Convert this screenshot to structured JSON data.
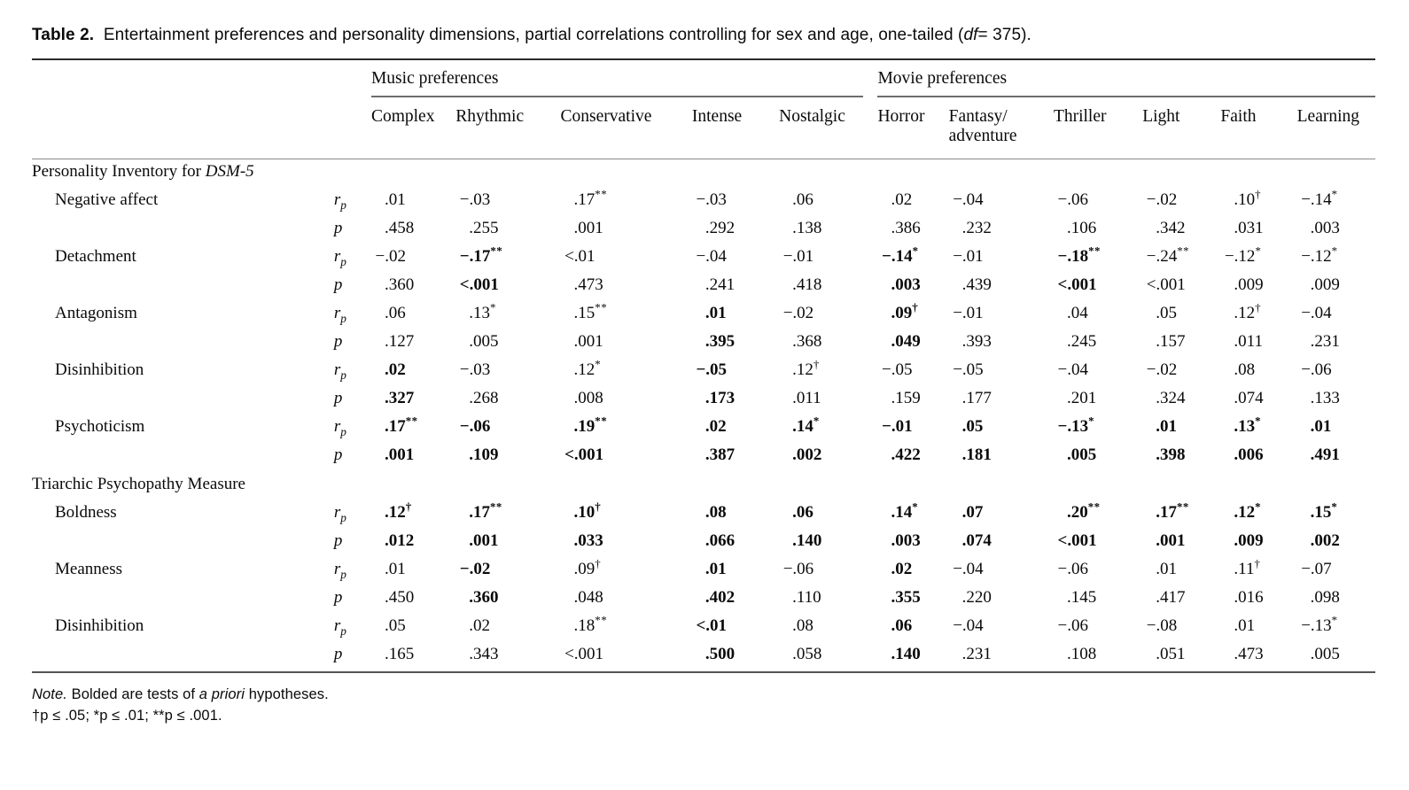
{
  "caption": {
    "label": "Table 2.",
    "body": "Entertainment preferences and personality dimensions, partial correlations controlling for sex and age, one-tailed (",
    "df_italic": "df",
    "tail": "= 375)."
  },
  "table": {
    "group_headers": [
      {
        "label": "Music preferences",
        "span": 5
      },
      {
        "label": "Movie preferences",
        "span": 6
      }
    ],
    "column_headers": [
      "Complex",
      "Rhythmic",
      "Conservative",
      "Intense",
      "Nostalgic",
      "Horror",
      "Fantasy/\nadventure",
      "Thriller",
      "Light",
      "Faith",
      "Learning"
    ],
    "stats": {
      "r": "r",
      "r_sub": "p",
      "p": "p"
    },
    "sections": [
      {
        "heading": "Personality Inventory for ",
        "heading_italic": "DSM-5",
        "rows": [
          {
            "label": "Negative affect",
            "r": {
              "values": [
                ".01",
                "−.03",
                ".17**",
                "−.03",
                ".06",
                ".02",
                "−.04",
                "−.06",
                "−.02",
                ".10†",
                "−.14*"
              ],
              "bold": [
                0,
                0,
                0,
                0,
                0,
                0,
                0,
                0,
                0,
                0,
                0
              ]
            },
            "p": {
              "values": [
                ".458",
                ".255",
                ".001",
                ".292",
                ".138",
                ".386",
                ".232",
                ".106",
                ".342",
                ".031",
                ".003"
              ],
              "bold": [
                0,
                0,
                0,
                0,
                0,
                0,
                0,
                0,
                0,
                0,
                0
              ]
            }
          },
          {
            "label": "Detachment",
            "r": {
              "values": [
                "−.02",
                "−.17**",
                "<.01",
                "−.04",
                "−.01",
                "−.14*",
                "−.01",
                "−.18**",
                "−.24**",
                "−.12*",
                "−.12*"
              ],
              "bold": [
                0,
                1,
                0,
                0,
                0,
                1,
                0,
                1,
                0,
                0,
                0
              ]
            },
            "p": {
              "values": [
                ".360",
                "<.001",
                ".473",
                ".241",
                ".418",
                ".003",
                ".439",
                "<.001",
                "<.001",
                ".009",
                ".009"
              ],
              "bold": [
                0,
                1,
                0,
                0,
                0,
                1,
                0,
                1,
                0,
                0,
                0
              ]
            }
          },
          {
            "label": "Antagonism",
            "r": {
              "values": [
                ".06",
                ".13*",
                ".15**",
                ".01",
                "−.02",
                ".09†",
                "−.01",
                ".04",
                ".05",
                ".12†",
                "−.04"
              ],
              "bold": [
                0,
                0,
                0,
                1,
                0,
                1,
                0,
                0,
                0,
                0,
                0
              ]
            },
            "p": {
              "values": [
                ".127",
                ".005",
                ".001",
                ".395",
                ".368",
                ".049",
                ".393",
                ".245",
                ".157",
                ".011",
                ".231"
              ],
              "bold": [
                0,
                0,
                0,
                1,
                0,
                1,
                0,
                0,
                0,
                0,
                0
              ]
            }
          },
          {
            "label": "Disinhibition",
            "r": {
              "values": [
                ".02",
                "−.03",
                ".12*",
                "−.05",
                ".12†",
                "−.05",
                "−.05",
                "−.04",
                "−.02",
                ".08",
                "−.06"
              ],
              "bold": [
                1,
                0,
                0,
                1,
                0,
                0,
                0,
                0,
                0,
                0,
                0
              ]
            },
            "p": {
              "values": [
                ".327",
                ".268",
                ".008",
                ".173",
                ".011",
                ".159",
                ".177",
                ".201",
                ".324",
                ".074",
                ".133"
              ],
              "bold": [
                1,
                0,
                0,
                1,
                0,
                0,
                0,
                0,
                0,
                0,
                0
              ]
            }
          },
          {
            "label": "Psychoticism",
            "r": {
              "values": [
                ".17**",
                "−.06",
                ".19**",
                ".02",
                ".14*",
                "−.01",
                ".05",
                "−.13*",
                ".01",
                ".13*",
                ".01"
              ],
              "bold": [
                1,
                1,
                1,
                1,
                1,
                1,
                1,
                1,
                1,
                1,
                1
              ]
            },
            "p": {
              "values": [
                ".001",
                ".109",
                "<.001",
                ".387",
                ".002",
                ".422",
                ".181",
                ".005",
                ".398",
                ".006",
                ".491"
              ],
              "bold": [
                1,
                1,
                1,
                1,
                1,
                1,
                1,
                1,
                1,
                1,
                1
              ]
            }
          }
        ]
      },
      {
        "heading": "Triarchic Psychopathy Measure",
        "heading_italic": "",
        "rows": [
          {
            "label": "Boldness",
            "r": {
              "values": [
                ".12†",
                ".17**",
                ".10†",
                ".08",
                ".06",
                ".14*",
                ".07",
                ".20**",
                ".17**",
                ".12*",
                ".15*"
              ],
              "bold": [
                1,
                1,
                1,
                1,
                1,
                1,
                1,
                1,
                1,
                1,
                1
              ]
            },
            "p": {
              "values": [
                ".012",
                ".001",
                ".033",
                ".066",
                ".140",
                ".003",
                ".074",
                "<.001",
                ".001",
                ".009",
                ".002"
              ],
              "bold": [
                1,
                1,
                1,
                1,
                1,
                1,
                1,
                1,
                1,
                1,
                1
              ]
            }
          },
          {
            "label": "Meanness",
            "r": {
              "values": [
                ".01",
                "−.02",
                ".09†",
                ".01",
                "−.06",
                ".02",
                "−.04",
                "−.06",
                ".01",
                ".11†",
                "−.07"
              ],
              "bold": [
                0,
                1,
                0,
                1,
                0,
                1,
                0,
                0,
                0,
                0,
                0
              ]
            },
            "p": {
              "values": [
                ".450",
                ".360",
                ".048",
                ".402",
                ".110",
                ".355",
                ".220",
                ".145",
                ".417",
                ".016",
                ".098"
              ],
              "bold": [
                0,
                1,
                0,
                1,
                0,
                1,
                0,
                0,
                0,
                0,
                0
              ]
            }
          },
          {
            "label": "Disinhibition",
            "r": {
              "values": [
                ".05",
                ".02",
                ".18**",
                "<.01",
                ".08",
                ".06",
                "−.04",
                "−.06",
                "−.08",
                ".01",
                "−.13*"
              ],
              "bold": [
                0,
                0,
                0,
                1,
                0,
                1,
                0,
                0,
                0,
                0,
                0
              ]
            },
            "p": {
              "values": [
                ".165",
                ".343",
                "<.001",
                ".500",
                ".058",
                ".140",
                ".231",
                ".108",
                ".051",
                ".473",
                ".005"
              ],
              "bold": [
                0,
                0,
                0,
                1,
                0,
                1,
                0,
                0,
                0,
                0,
                0
              ]
            }
          }
        ]
      }
    ]
  },
  "notes": {
    "note_italic": "Note.",
    "note_a": " Bolded are tests of ",
    "note_italic2": "a priori",
    "note_b": " hypotheses.",
    "sig_line": "†p ≤ .05; *p ≤ .01; **p ≤ .001."
  }
}
